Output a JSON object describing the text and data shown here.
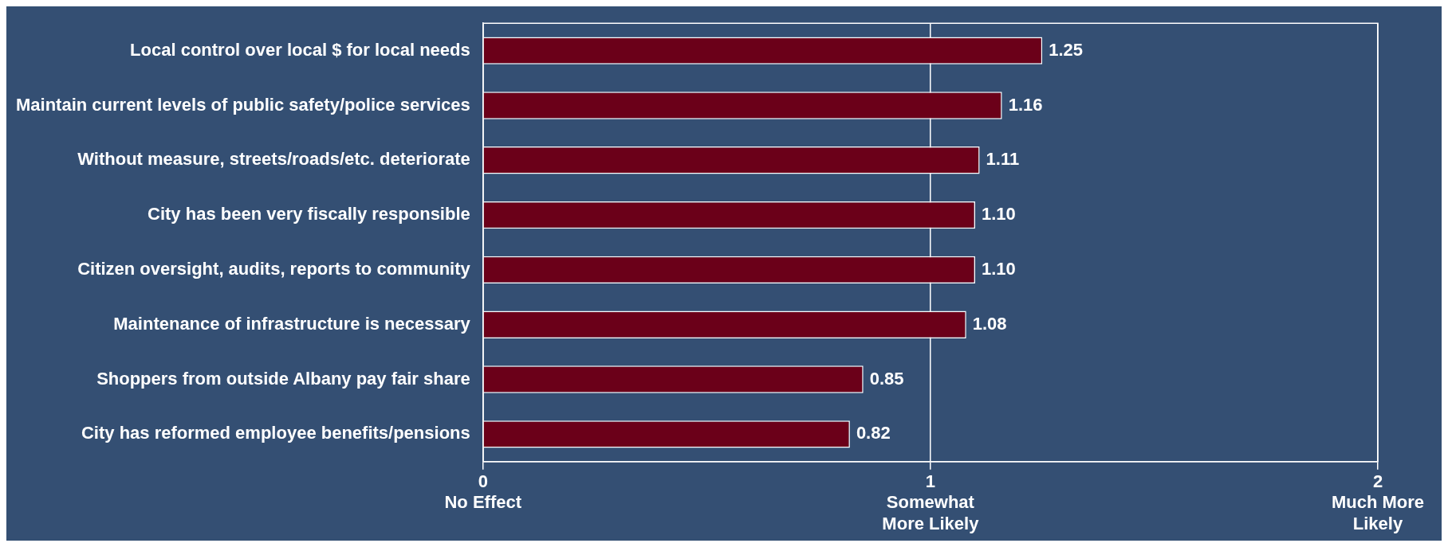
{
  "chart_data": {
    "type": "bar",
    "orientation": "horizontal",
    "categories": [
      "Local control over local $ for local needs",
      "Maintain current levels of public safety/police services",
      "Without measure, streets/roads/etc. deteriorate",
      "City has been very fiscally responsible",
      "Citizen oversight, audits, reports to community",
      "Maintenance of infrastructure is necessary",
      "Shoppers from outside Albany pay fair share",
      "City has reformed employee benefits/pensions"
    ],
    "values": [
      1.25,
      1.16,
      1.11,
      1.1,
      1.1,
      1.08,
      0.85,
      0.82
    ],
    "value_labels": [
      "1.25",
      "1.16",
      "1.11",
      "1.10",
      "1.10",
      "1.08",
      "0.85",
      "0.82"
    ],
    "color": "#6b0019",
    "xlim": [
      0,
      2
    ],
    "xticks": [
      {
        "value": 0,
        "label": "0\nNo Effect"
      },
      {
        "value": 1,
        "label": "1\nSomewhat\nMore Likely"
      },
      {
        "value": 2,
        "label": "2\nMuch More\nLikely"
      }
    ],
    "grid": "x",
    "legend": false
  }
}
